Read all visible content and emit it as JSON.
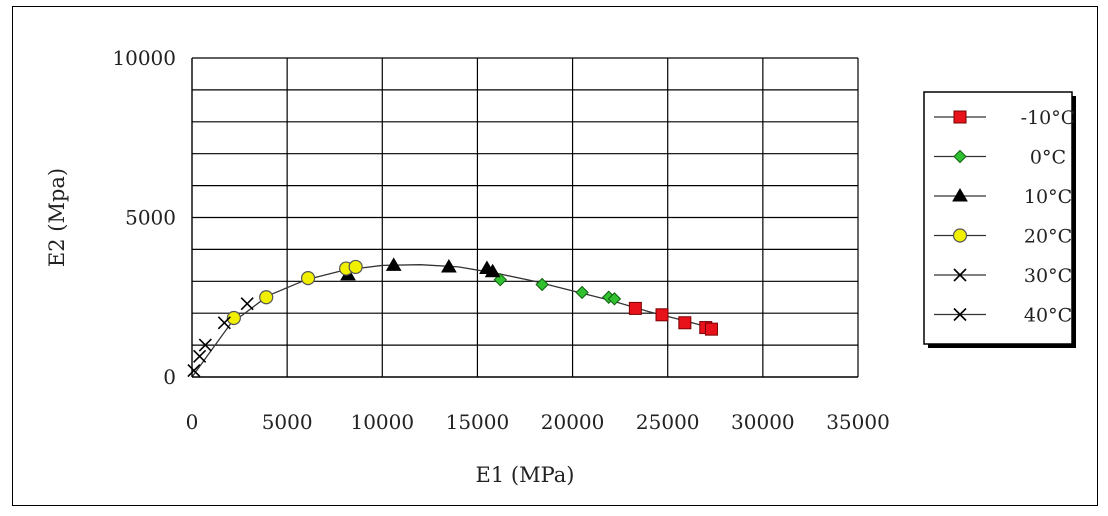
{
  "chart_data": {
    "type": "scatter",
    "title": "",
    "xlabel": "E1 (MPa)",
    "ylabel": "E2 (Mpa)",
    "xlim": [
      0,
      35000
    ],
    "ylim": [
      0,
      10000
    ],
    "x_ticks": [
      0,
      5000,
      10000,
      15000,
      20000,
      25000,
      30000,
      35000
    ],
    "y_ticks": [
      0,
      5000,
      10000
    ],
    "grid": true,
    "legend_position": "right",
    "series": [
      {
        "name": "-10°C",
        "marker": "square",
        "color": "#e8121b",
        "points": [
          [
            23300,
            2150
          ],
          [
            24700,
            1950
          ],
          [
            25900,
            1700
          ],
          [
            27000,
            1550
          ],
          [
            27300,
            1500
          ]
        ]
      },
      {
        "name": "0°C",
        "marker": "diamond",
        "color": "#30c030",
        "points": [
          [
            16200,
            3050
          ],
          [
            18400,
            2900
          ],
          [
            20500,
            2650
          ],
          [
            21900,
            2500
          ],
          [
            22200,
            2450
          ]
        ]
      },
      {
        "name": "10°C",
        "marker": "triangle",
        "color": "#000000",
        "points": [
          [
            8200,
            3200
          ],
          [
            10600,
            3500
          ],
          [
            13500,
            3450
          ],
          [
            15500,
            3400
          ],
          [
            15800,
            3300
          ]
        ]
      },
      {
        "name": "20°C",
        "marker": "circle",
        "color": "#f0f000",
        "points": [
          [
            2200,
            1850
          ],
          [
            3900,
            2500
          ],
          [
            6100,
            3100
          ],
          [
            8100,
            3400
          ],
          [
            8600,
            3450
          ]
        ]
      },
      {
        "name": "30°C",
        "marker": "x",
        "color": "#000000",
        "points": [
          [
            1700,
            1700
          ],
          [
            2900,
            2300
          ]
        ]
      },
      {
        "name": "40°C",
        "marker": "x",
        "color": "#000000",
        "points": [
          [
            100,
            200
          ],
          [
            400,
            650
          ],
          [
            700,
            1000
          ]
        ]
      }
    ],
    "trend_line": [
      [
        0,
        0
      ],
      [
        2000,
        1650
      ],
      [
        4000,
        2550
      ],
      [
        6000,
        3050
      ],
      [
        8000,
        3350
      ],
      [
        10000,
        3500
      ],
      [
        12000,
        3520
      ],
      [
        14000,
        3450
      ],
      [
        16000,
        3250
      ],
      [
        18000,
        3000
      ],
      [
        20000,
        2700
      ],
      [
        22000,
        2400
      ],
      [
        24000,
        2050
      ],
      [
        26000,
        1750
      ],
      [
        27500,
        1500
      ]
    ]
  }
}
